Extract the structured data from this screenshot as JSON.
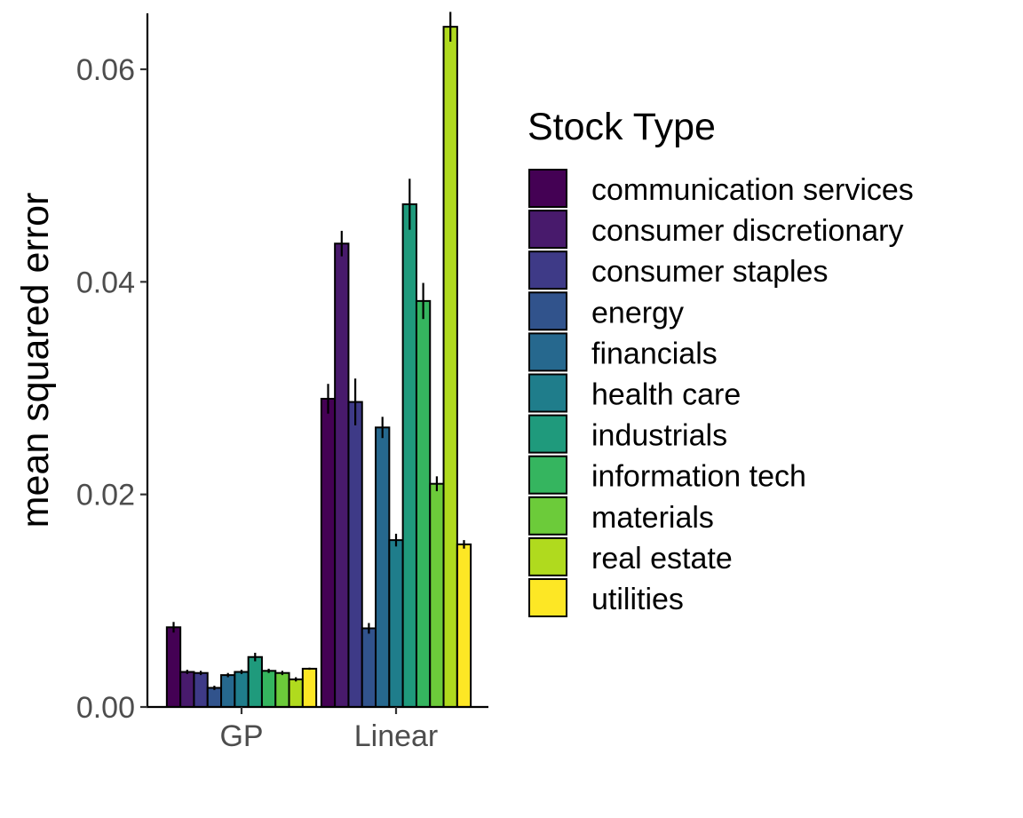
{
  "chart_data": {
    "type": "bar",
    "categories": [
      "GP",
      "Linear"
    ],
    "xlabel": "",
    "ylabel": "mean squared error",
    "ylim": [
      0,
      0.065
    ],
    "yticks": [
      0.0,
      0.02,
      0.04,
      0.06
    ],
    "ytick_labels": [
      "0.00",
      "0.02",
      "0.04",
      "0.06"
    ],
    "grid": false,
    "legend_title": "Stock Type",
    "legend_position": "right",
    "series": [
      {
        "name": "communication services",
        "color": "#440154",
        "values": [
          0.0075,
          0.029
        ],
        "errors": [
          0.0005,
          0.0014
        ]
      },
      {
        "name": "consumer discretionary",
        "color": "#481A6C",
        "values": [
          0.0033,
          0.0436
        ],
        "errors": [
          0.0002,
          0.0012
        ]
      },
      {
        "name": "consumer staples",
        "color": "#3E3A87",
        "values": [
          0.0032,
          0.0287
        ],
        "errors": [
          0.0002,
          0.0022
        ]
      },
      {
        "name": "energy",
        "color": "#31538C",
        "values": [
          0.0018,
          0.0074
        ],
        "errors": [
          0.0002,
          0.0005
        ]
      },
      {
        "name": "financials",
        "color": "#26688E",
        "values": [
          0.003,
          0.0263
        ],
        "errors": [
          0.0002,
          0.001
        ]
      },
      {
        "name": "health care",
        "color": "#1F7D8B",
        "values": [
          0.0033,
          0.0157
        ],
        "errors": [
          0.0002,
          0.0006
        ]
      },
      {
        "name": "industrials",
        "color": "#1F9A7C",
        "values": [
          0.0047,
          0.0473
        ],
        "errors": [
          0.0004,
          0.0024
        ]
      },
      {
        "name": "information tech",
        "color": "#35B55F",
        "values": [
          0.0034,
          0.0382
        ],
        "errors": [
          0.0002,
          0.0017
        ]
      },
      {
        "name": "materials",
        "color": "#6CCB3A",
        "values": [
          0.0032,
          0.021
        ],
        "errors": [
          0.0002,
          0.0007
        ]
      },
      {
        "name": "real estate",
        "color": "#B0DA1E",
        "values": [
          0.0026,
          0.064
        ],
        "errors": [
          0.0002,
          0.0014
        ]
      },
      {
        "name": "utilities",
        "color": "#FDE725",
        "values": [
          0.0036,
          0.0153
        ],
        "errors": [
          0.0001,
          0.0004
        ]
      }
    ]
  }
}
